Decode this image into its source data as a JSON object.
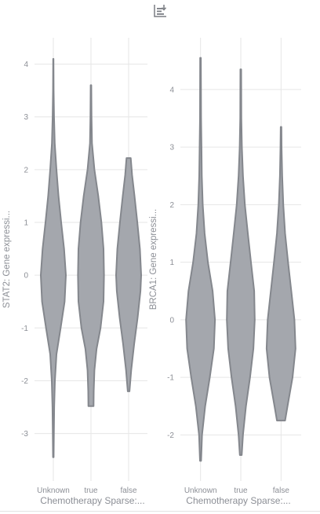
{
  "toolbar": {
    "icon": "download-chart-icon"
  },
  "colors": {
    "violin_fill": "#a4a7ad",
    "violin_stroke": "#84878d",
    "grid": "#e6e6e6",
    "text": "#8c8f96"
  },
  "chart_data": [
    {
      "type": "violin",
      "ylabel": "STAT2: Gene expressi...",
      "xlabel": "Chemotherapy Sparse:...",
      "categories": [
        "Unknown",
        "true",
        "false"
      ],
      "yticks": [
        -3,
        -2,
        -1,
        0,
        1,
        2,
        3,
        4
      ],
      "ylim": [
        -3.9,
        4.5
      ],
      "series": [
        {
          "category": "Unknown",
          "min": -3.45,
          "max": 4.1,
          "density": [
            [
              -3.45,
              0.02
            ],
            [
              -3.0,
              0.03
            ],
            [
              -2.5,
              0.05
            ],
            [
              -2.0,
              0.09
            ],
            [
              -1.5,
              0.18
            ],
            [
              -1.0,
              0.42
            ],
            [
              -0.5,
              0.65
            ],
            [
              0.0,
              0.72
            ],
            [
              0.5,
              0.62
            ],
            [
              1.0,
              0.45
            ],
            [
              1.5,
              0.3
            ],
            [
              2.0,
              0.18
            ],
            [
              2.5,
              0.08
            ],
            [
              3.0,
              0.04
            ],
            [
              3.5,
              0.02
            ],
            [
              4.1,
              0.01
            ]
          ]
        },
        {
          "category": "true",
          "min": -2.48,
          "max": 3.6,
          "density": [
            [
              -2.48,
              0.15
            ],
            [
              -2.2,
              0.16
            ],
            [
              -1.8,
              0.2
            ],
            [
              -1.4,
              0.32
            ],
            [
              -1.0,
              0.55
            ],
            [
              -0.5,
              0.72
            ],
            [
              0.0,
              0.75
            ],
            [
              0.5,
              0.72
            ],
            [
              1.0,
              0.6
            ],
            [
              1.5,
              0.42
            ],
            [
              2.0,
              0.2
            ],
            [
              2.5,
              0.06
            ],
            [
              3.0,
              0.03
            ],
            [
              3.6,
              0.02
            ]
          ]
        },
        {
          "category": "false",
          "min": -2.2,
          "max": 2.22,
          "density": [
            [
              -2.2,
              0.05
            ],
            [
              -1.8,
              0.15
            ],
            [
              -1.3,
              0.32
            ],
            [
              -0.8,
              0.52
            ],
            [
              -0.3,
              0.68
            ],
            [
              0.0,
              0.72
            ],
            [
              0.5,
              0.65
            ],
            [
              1.0,
              0.5
            ],
            [
              1.5,
              0.34
            ],
            [
              1.9,
              0.2
            ],
            [
              2.22,
              0.12
            ]
          ]
        }
      ]
    },
    {
      "type": "violin",
      "ylabel": "BRCA1: Gene expressi...",
      "xlabel": "Chemotherapy Sparse:...",
      "categories": [
        "Unknown",
        "true",
        "false"
      ],
      "yticks": [
        -2,
        -1,
        0,
        1,
        2,
        3,
        4
      ],
      "ylim": [
        -2.8,
        4.9
      ],
      "series": [
        {
          "category": "Unknown",
          "min": -2.45,
          "max": 4.55,
          "density": [
            [
              -2.45,
              0.03
            ],
            [
              -2.0,
              0.08
            ],
            [
              -1.5,
              0.25
            ],
            [
              -1.0,
              0.5
            ],
            [
              -0.5,
              0.72
            ],
            [
              0.0,
              0.78
            ],
            [
              0.5,
              0.65
            ],
            [
              1.0,
              0.4
            ],
            [
              1.5,
              0.22
            ],
            [
              2.0,
              0.12
            ],
            [
              2.5,
              0.07
            ],
            [
              3.0,
              0.05
            ],
            [
              3.5,
              0.03
            ],
            [
              4.55,
              0.02
            ]
          ]
        },
        {
          "category": "true",
          "min": -2.35,
          "max": 4.35,
          "density": [
            [
              -2.35,
              0.05
            ],
            [
              -2.0,
              0.12
            ],
            [
              -1.5,
              0.28
            ],
            [
              -1.0,
              0.5
            ],
            [
              -0.5,
              0.68
            ],
            [
              0.0,
              0.75
            ],
            [
              0.5,
              0.72
            ],
            [
              1.0,
              0.55
            ],
            [
              1.5,
              0.38
            ],
            [
              2.0,
              0.22
            ],
            [
              2.5,
              0.12
            ],
            [
              3.0,
              0.06
            ],
            [
              3.5,
              0.03
            ],
            [
              4.35,
              0.02
            ]
          ]
        },
        {
          "category": "false",
          "min": -1.75,
          "max": 3.35,
          "density": [
            [
              -1.75,
              0.22
            ],
            [
              -1.5,
              0.35
            ],
            [
              -1.0,
              0.62
            ],
            [
              -0.5,
              0.78
            ],
            [
              0.0,
              0.72
            ],
            [
              0.5,
              0.55
            ],
            [
              1.0,
              0.38
            ],
            [
              1.5,
              0.22
            ],
            [
              2.0,
              0.12
            ],
            [
              2.5,
              0.06
            ],
            [
              3.0,
              0.03
            ],
            [
              3.35,
              0.02
            ]
          ]
        }
      ]
    }
  ]
}
